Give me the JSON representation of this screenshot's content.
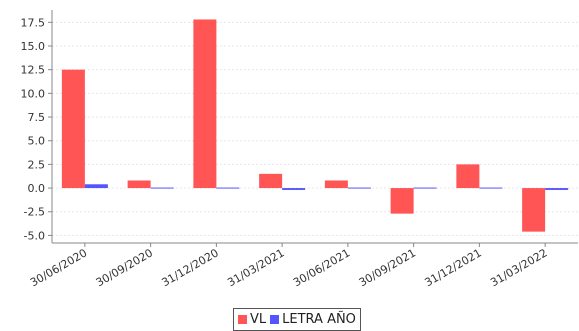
{
  "chart_data": {
    "type": "bar",
    "categories": [
      "30/06/2020",
      "30/09/2020",
      "31/12/2020",
      "31/03/2021",
      "30/06/2021",
      "30/09/2021",
      "31/12/2021",
      "31/03/2022"
    ],
    "series": [
      {
        "name": "VL",
        "color": "#ff5555",
        "values": [
          12.5,
          0.8,
          17.8,
          1.5,
          0.8,
          -2.7,
          2.5,
          -4.6
        ]
      },
      {
        "name": "LETRA AÑO",
        "color": "#5555ff",
        "values": [
          0.4,
          0.0,
          0.0,
          -0.2,
          -0.1,
          -0.1,
          -0.1,
          -0.2
        ]
      }
    ],
    "ylim": [
      -5.8,
      18.8
    ],
    "yticks": [
      -5.0,
      -2.5,
      0.0,
      2.5,
      5.0,
      7.5,
      10.0,
      12.5,
      15.0,
      17.5
    ],
    "grid": true,
    "legend": "bottom-center"
  }
}
